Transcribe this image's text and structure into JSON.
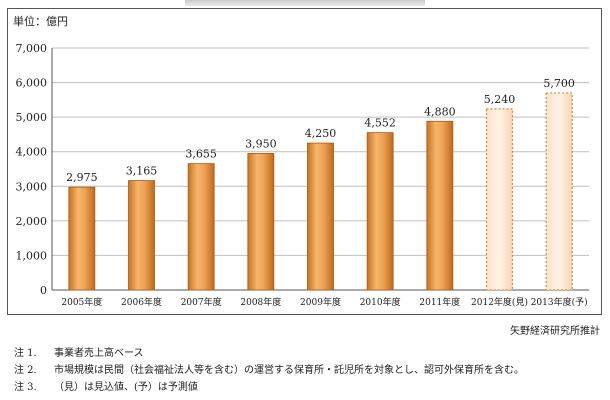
{
  "chart_data": {
    "type": "bar",
    "unit_label": "単位：億円",
    "categories": [
      "2005年度",
      "2006年度",
      "2007年度",
      "2008年度",
      "2009年度",
      "2010年度",
      "2011年度",
      "2012年度(見)",
      "2013年度(予)"
    ],
    "values": [
      2975,
      3165,
      3655,
      3950,
      4250,
      4552,
      4880,
      5240,
      5700
    ],
    "value_labels": [
      "2,975",
      "3,165",
      "3,655",
      "3,950",
      "4,250",
      "4,552",
      "4,880",
      "5,240",
      "5,700"
    ],
    "projected": [
      false,
      false,
      false,
      false,
      false,
      false,
      false,
      true,
      true
    ],
    "ylim": [
      0,
      7000
    ],
    "yticks": [
      0,
      1000,
      2000,
      3000,
      4000,
      5000,
      6000,
      7000
    ],
    "ytick_labels": [
      "0",
      "1,000",
      "2,000",
      "3,000",
      "4,000",
      "5,000",
      "6,000",
      "7,000"
    ],
    "grid": true,
    "colors": {
      "bar": "#e89a45",
      "bar_edge": "#a85a14",
      "projected_fill": "#fde9d3",
      "projected_edge": "#d4883a",
      "grid": "#bfbfbf"
    }
  },
  "source": "矢野経済研究所推計",
  "notes": [
    {
      "no": "注 1.",
      "text": "事業者売上高ベース"
    },
    {
      "no": "注 2.",
      "text": "市場規模は民間（社会福祉法人等を含む）の運営する保育所・託児所を対象とし、認可外保育所を含む。"
    },
    {
      "no": "注 3.",
      "text": "（見）は見込値、(予）は予測値"
    }
  ]
}
